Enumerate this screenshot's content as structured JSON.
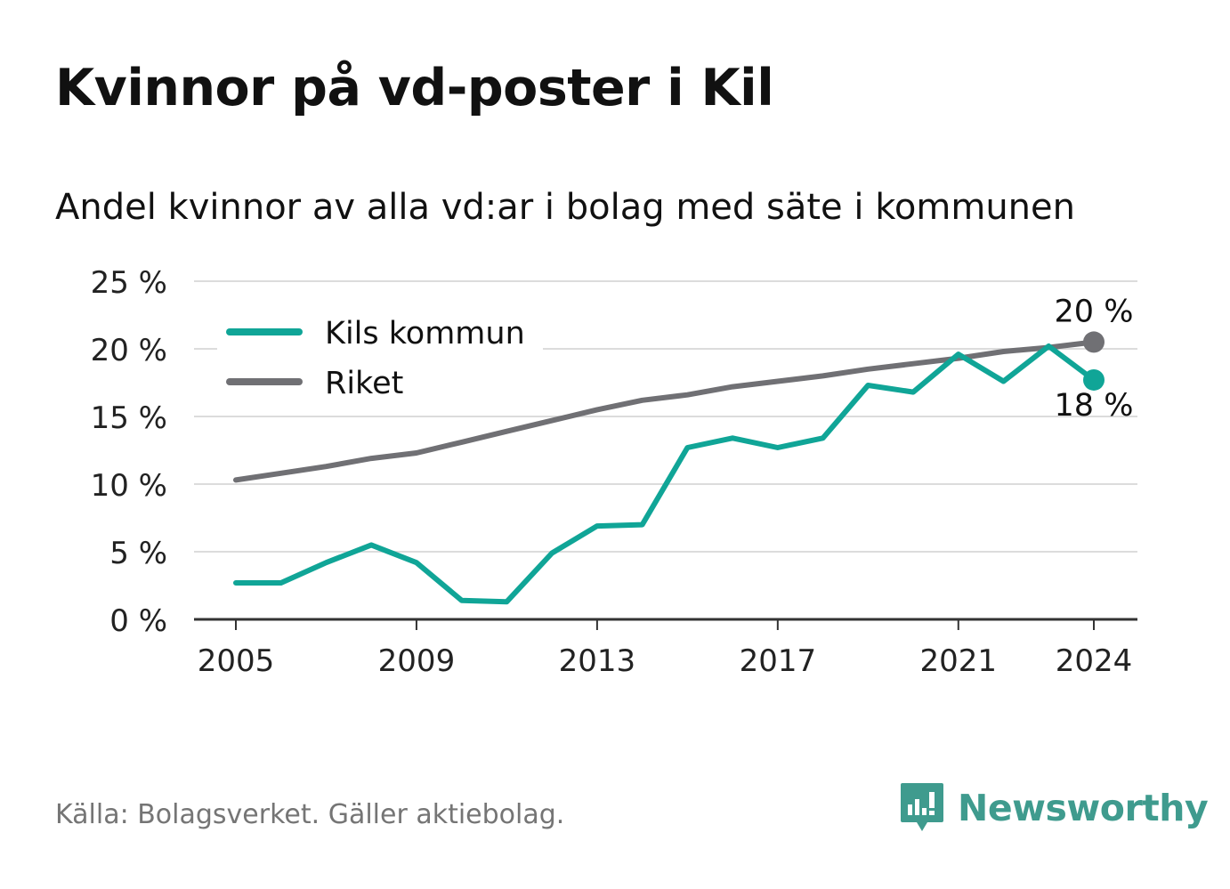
{
  "header": {
    "title": "Kvinnor på vd-poster i Kil",
    "subtitle": "Andel kvinnor av alla vd:ar i bolag med säte i kommunen"
  },
  "footer": {
    "source": "Källa: Bolagsverket. Gäller aktiebolag.",
    "brand": "Newsworthy",
    "brand_icon": "newsworthy-logo-icon"
  },
  "colors": {
    "kil": "#10a597",
    "riket": "#707074",
    "grid": "#dcdcdc",
    "axis": "#333333",
    "brand": "#3f9b8e"
  },
  "chart_data": {
    "type": "line",
    "x": [
      2005,
      2006,
      2007,
      2008,
      2009,
      2010,
      2011,
      2012,
      2013,
      2014,
      2015,
      2016,
      2017,
      2018,
      2019,
      2020,
      2021,
      2022,
      2023,
      2024
    ],
    "series": [
      {
        "name": "Kils kommun",
        "values": [
          2.7,
          2.7,
          4.2,
          5.5,
          4.2,
          1.4,
          1.3,
          4.9,
          6.9,
          7.0,
          12.7,
          13.4,
          12.7,
          13.4,
          17.3,
          16.8,
          19.6,
          17.6,
          20.2,
          17.7
        ],
        "end_label": "18 %"
      },
      {
        "name": "Riket",
        "values": [
          10.3,
          10.8,
          11.3,
          11.9,
          12.3,
          13.1,
          13.9,
          14.7,
          15.5,
          16.2,
          16.6,
          17.2,
          17.6,
          18.0,
          18.5,
          18.9,
          19.3,
          19.8,
          20.1,
          20.5
        ],
        "end_label": "20 %"
      }
    ],
    "x_ticks": [
      2005,
      2009,
      2013,
      2017,
      2021,
      2024
    ],
    "y_ticks": [
      0,
      5,
      10,
      15,
      20,
      25
    ],
    "y_tick_labels": [
      "0 %",
      "5 %",
      "10 %",
      "15 %",
      "20 %",
      "25 %"
    ],
    "ylim": [
      0,
      25
    ],
    "xlim": [
      2005,
      2024
    ],
    "grid": true,
    "legend_position": "top-left"
  }
}
